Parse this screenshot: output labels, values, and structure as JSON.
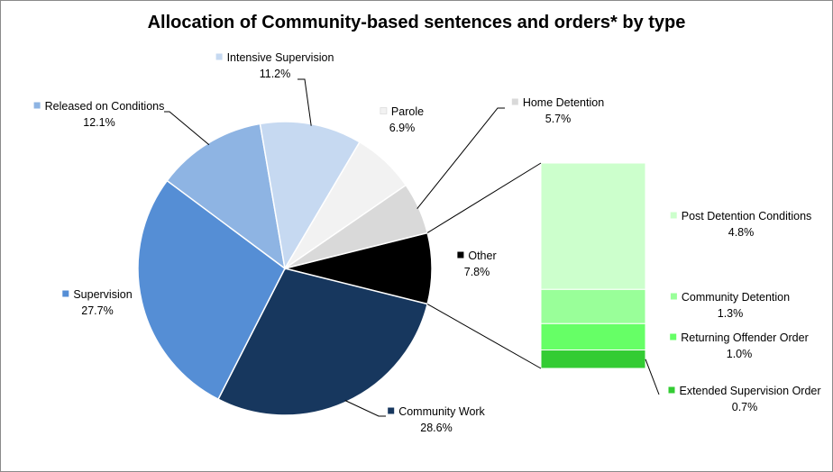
{
  "chart_data": {
    "type": "pie",
    "title": "Allocation of Community-based sentences and orders* by type",
    "pie": {
      "slices": [
        {
          "name": "Other",
          "value": 7.8,
          "label": "7.8%",
          "color": "#000000"
        },
        {
          "name": "Community Work",
          "value": 28.6,
          "label": "28.6%",
          "color": "#17375e"
        },
        {
          "name": "Supervision",
          "value": 27.7,
          "label": "27.7%",
          "color": "#558ed5"
        },
        {
          "name": "Released on Conditions",
          "value": 12.1,
          "label": "12.1%",
          "color": "#8eb4e3"
        },
        {
          "name": "Intensive Supervision",
          "value": 11.2,
          "label": "11.2%",
          "color": "#c6d9f1"
        },
        {
          "name": "Parole",
          "value": 6.9,
          "label": "6.9%",
          "color": "#f2f2f2"
        },
        {
          "name": "Home Detention",
          "value": 5.7,
          "label": "5.7%",
          "color": "#d9d9d9"
        }
      ]
    },
    "breakdown": {
      "of": "Other",
      "segments": [
        {
          "name": "Post Detention Conditions",
          "value": 4.8,
          "label": "4.8%",
          "color": "#ccffcc"
        },
        {
          "name": "Community Detention",
          "value": 1.3,
          "label": "1.3%",
          "color": "#99ff99"
        },
        {
          "name": "Returning Offender Order",
          "value": 1.0,
          "label": "1.0%",
          "color": "#66ff66"
        },
        {
          "name": "Extended Supervision Order",
          "value": 0.7,
          "label": "0.7%",
          "color": "#33cc33"
        }
      ]
    }
  }
}
